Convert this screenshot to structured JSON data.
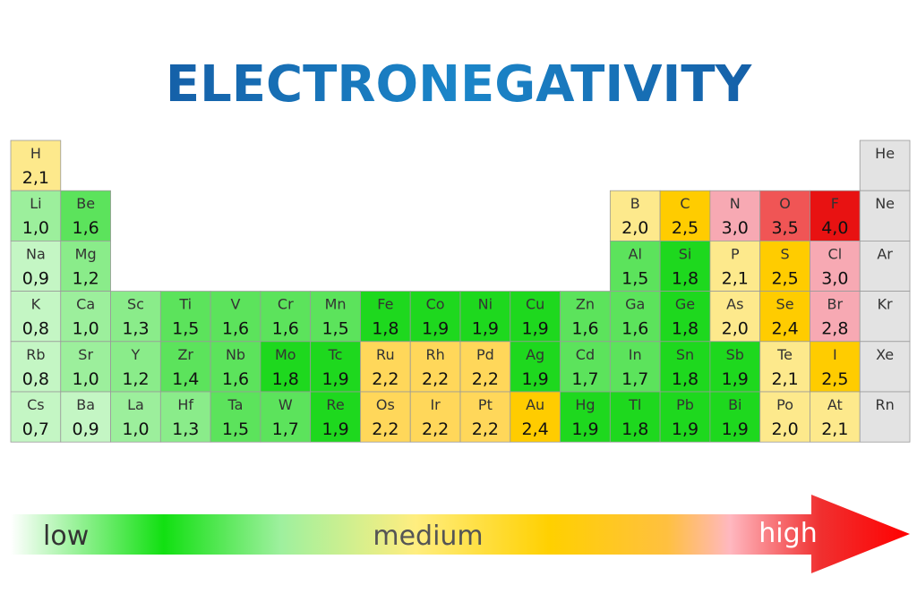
{
  "title": "ELECTRONEGATIVITY",
  "rows": [
    [
      {
        "symbol": "H",
        "value": "2,1",
        "color": "#fde98c"
      },
      {
        "symbol": "He",
        "color": "#e3e3e3"
      }
    ],
    [
      {
        "symbol": "Li",
        "value": "1,0",
        "color": "#9cef9c"
      },
      {
        "symbol": "Be",
        "value": "1,6",
        "color": "#5ce35c"
      },
      {
        "symbol": "B",
        "value": "2,0",
        "color": "#fde98c"
      },
      {
        "symbol": "C",
        "value": "2,5",
        "color": "#ffcc00"
      },
      {
        "symbol": "N",
        "value": "3,0",
        "color": "#f7a9b3"
      },
      {
        "symbol": "O",
        "value": "3,5",
        "color": "#f05555"
      },
      {
        "symbol": "F",
        "value": "4,0",
        "color": "#e81212"
      },
      {
        "symbol": "Ne",
        "color": "#e3e3e3"
      }
    ],
    [
      {
        "symbol": "Na",
        "value": "0,9",
        "color": "#c4f6c4"
      },
      {
        "symbol": "Mg",
        "value": "1,2",
        "color": "#8aec8a"
      },
      {
        "symbol": "Al",
        "value": "1,5",
        "color": "#5ce35c"
      },
      {
        "symbol": "Si",
        "value": "1,8",
        "color": "#1ed81e"
      },
      {
        "symbol": "P",
        "value": "2,1",
        "color": "#fde98c"
      },
      {
        "symbol": "S",
        "value": "2,5",
        "color": "#ffcc00"
      },
      {
        "symbol": "Cl",
        "value": "3,0",
        "color": "#f7a9b3"
      },
      {
        "symbol": "Ar",
        "color": "#e3e3e3"
      }
    ],
    [
      {
        "symbol": "K",
        "value": "0,8",
        "color": "#c4f6c4"
      },
      {
        "symbol": "Ca",
        "value": "1,0",
        "color": "#9cef9c"
      },
      {
        "symbol": "Sc",
        "value": "1,3",
        "color": "#8aec8a"
      },
      {
        "symbol": "Ti",
        "value": "1,5",
        "color": "#5ce35c"
      },
      {
        "symbol": "V",
        "value": "1,6",
        "color": "#5ce35c"
      },
      {
        "symbol": "Cr",
        "value": "1,6",
        "color": "#5ce35c"
      },
      {
        "symbol": "Mn",
        "value": "1,5",
        "color": "#5ce35c"
      },
      {
        "symbol": "Fe",
        "value": "1,8",
        "color": "#1ed81e"
      },
      {
        "symbol": "Co",
        "value": "1,9",
        "color": "#1ed81e"
      },
      {
        "symbol": "Ni",
        "value": "1,9",
        "color": "#1ed81e"
      },
      {
        "symbol": "Cu",
        "value": "1,9",
        "color": "#1ed81e"
      },
      {
        "symbol": "Zn",
        "value": "1,6",
        "color": "#5ce35c"
      },
      {
        "symbol": "Ga",
        "value": "1,6",
        "color": "#5ce35c"
      },
      {
        "symbol": "Ge",
        "value": "1,8",
        "color": "#1ed81e"
      },
      {
        "symbol": "As",
        "value": "2,0",
        "color": "#fde98c"
      },
      {
        "symbol": "Se",
        "value": "2,4",
        "color": "#ffcc00"
      },
      {
        "symbol": "Br",
        "value": "2,8",
        "color": "#f7a9b3"
      },
      {
        "symbol": "Kr",
        "color": "#e3e3e3"
      }
    ],
    [
      {
        "symbol": "Rb",
        "value": "0,8",
        "color": "#c4f6c4"
      },
      {
        "symbol": "Sr",
        "value": "1,0",
        "color": "#9cef9c"
      },
      {
        "symbol": "Y",
        "value": "1,2",
        "color": "#8aec8a"
      },
      {
        "symbol": "Zr",
        "value": "1,4",
        "color": "#5ce35c"
      },
      {
        "symbol": "Nb",
        "value": "1,6",
        "color": "#5ce35c"
      },
      {
        "symbol": "Mo",
        "value": "1,8",
        "color": "#1ed81e"
      },
      {
        "symbol": "Tc",
        "value": "1,9",
        "color": "#1ed81e"
      },
      {
        "symbol": "Ru",
        "value": "2,2",
        "color": "#ffd75a"
      },
      {
        "symbol": "Rh",
        "value": "2,2",
        "color": "#ffd75a"
      },
      {
        "symbol": "Pd",
        "value": "2,2",
        "color": "#ffd75a"
      },
      {
        "symbol": "Ag",
        "value": "1,9",
        "color": "#1ed81e"
      },
      {
        "symbol": "Cd",
        "value": "1,7",
        "color": "#5ce35c"
      },
      {
        "symbol": "In",
        "value": "1,7",
        "color": "#5ce35c"
      },
      {
        "symbol": "Sn",
        "value": "1,8",
        "color": "#1ed81e"
      },
      {
        "symbol": "Sb",
        "value": "1,9",
        "color": "#1ed81e"
      },
      {
        "symbol": "Te",
        "value": "2,1",
        "color": "#fde98c"
      },
      {
        "symbol": "I",
        "value": "2,5",
        "color": "#ffcc00"
      },
      {
        "symbol": "Xe",
        "color": "#e3e3e3"
      }
    ],
    [
      {
        "symbol": "Cs",
        "value": "0,7",
        "color": "#c4f6c4"
      },
      {
        "symbol": "Ba",
        "value": "0,9",
        "color": "#c4f6c4"
      },
      {
        "symbol": "La",
        "value": "1,0",
        "color": "#9cef9c"
      },
      {
        "symbol": "Hf",
        "value": "1,3",
        "color": "#8aec8a"
      },
      {
        "symbol": "Ta",
        "value": "1,5",
        "color": "#5ce35c"
      },
      {
        "symbol": "W",
        "value": "1,7",
        "color": "#5ce35c"
      },
      {
        "symbol": "Re",
        "value": "1,9",
        "color": "#1ed81e"
      },
      {
        "symbol": "Os",
        "value": "2,2",
        "color": "#ffd75a"
      },
      {
        "symbol": "Ir",
        "value": "2,2",
        "color": "#ffd75a"
      },
      {
        "symbol": "Pt",
        "value": "2,2",
        "color": "#ffd75a"
      },
      {
        "symbol": "Au",
        "value": "2,4",
        "color": "#ffcc00"
      },
      {
        "symbol": "Hg",
        "value": "1,9",
        "color": "#1ed81e"
      },
      {
        "symbol": "Tl",
        "value": "1,8",
        "color": "#1ed81e"
      },
      {
        "symbol": "Pb",
        "value": "1,9",
        "color": "#1ed81e"
      },
      {
        "symbol": "Bi",
        "value": "1,9",
        "color": "#1ed81e"
      },
      {
        "symbol": "Po",
        "value": "2,0",
        "color": "#fde98c"
      },
      {
        "symbol": "At",
        "value": "2,1",
        "color": "#fde98c"
      },
      {
        "symbol": "Rn",
        "color": "#e3e3e3"
      }
    ]
  ],
  "scale": {
    "low": "low",
    "medium": "medium",
    "high": "high"
  }
}
